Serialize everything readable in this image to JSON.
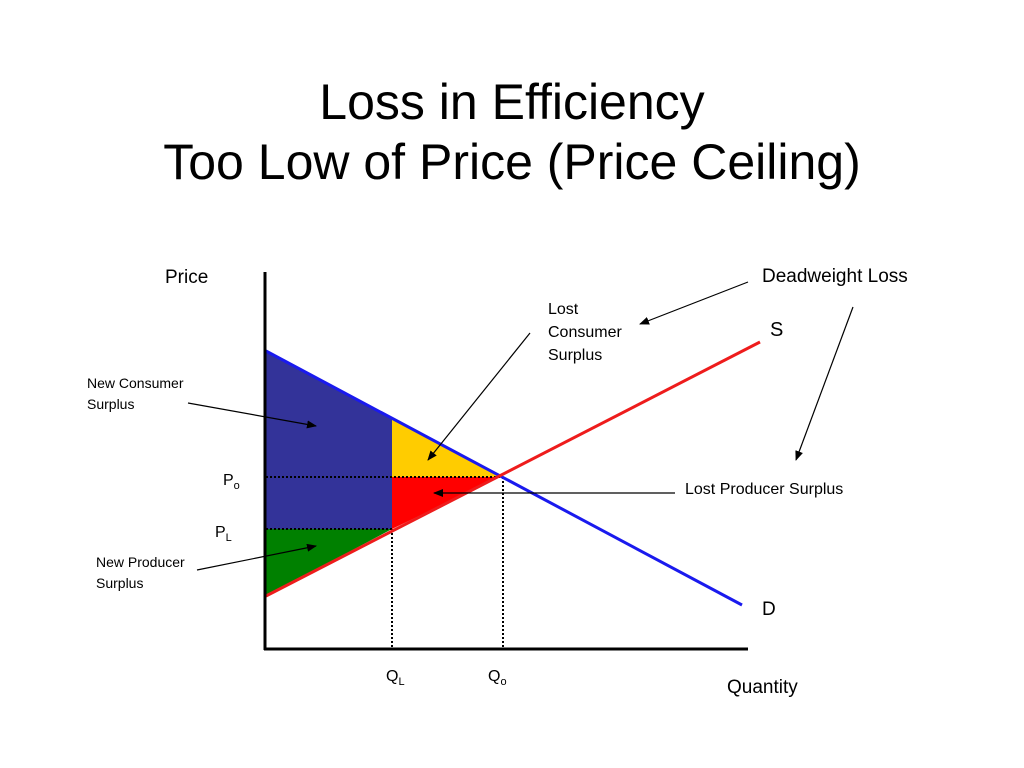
{
  "title": {
    "line1": "Loss in Efficiency",
    "line2": "Too Low of Price (Price Ceiling)"
  },
  "axes": {
    "y_label": "Price",
    "x_label": "Quantity"
  },
  "curves": {
    "supply_label": "S",
    "demand_label": "D",
    "supply_color": "#ee1c1c",
    "demand_color": "#1a1aee"
  },
  "prices": {
    "p_original": {
      "main": "P",
      "sub": "o"
    },
    "p_low": {
      "main": "P",
      "sub": "L"
    }
  },
  "quantities": {
    "q_low": {
      "main": "Q",
      "sub": "L"
    },
    "q_original": {
      "main": "Q",
      "sub": "o"
    }
  },
  "regions": {
    "new_consumer_surplus": {
      "line1": "New Consumer",
      "line2": "Surplus",
      "color": "#333399"
    },
    "new_producer_surplus": {
      "line1": "New Producer",
      "line2": "Surplus",
      "color": "#008000"
    },
    "lost_consumer_surplus": {
      "line1": "Lost",
      "line2": "Consumer",
      "line3": "Surplus",
      "color": "#ffcc00"
    },
    "lost_producer_surplus": {
      "label": "Lost Producer Surplus",
      "color": "#ff0000"
    },
    "deadweight_loss": {
      "label": "Deadweight Loss"
    }
  }
}
